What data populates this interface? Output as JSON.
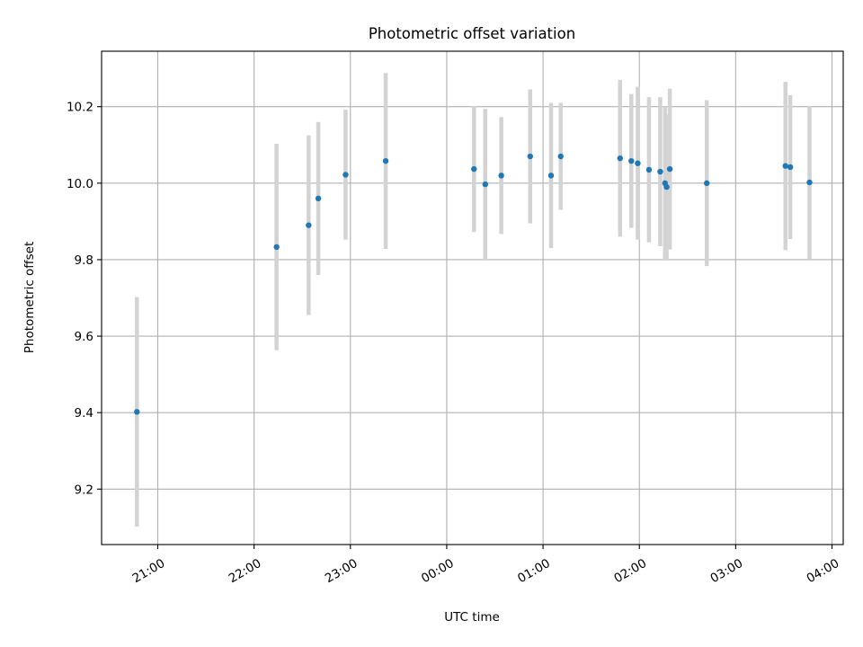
{
  "chart_data": {
    "type": "scatter",
    "title": "Photometric offset variation",
    "xlabel": "UTC time",
    "ylabel": "Photometric offset",
    "x_ticks": [
      "21:00",
      "22:00",
      "23:00",
      "00:00",
      "01:00",
      "02:00",
      "03:00",
      "04:00"
    ],
    "y_ticks": [
      "9.2",
      "9.4",
      "9.6",
      "9.8",
      "10.0",
      "10.2"
    ],
    "y_tick_values": [
      9.2,
      9.4,
      9.6,
      9.8,
      10.0,
      10.2
    ],
    "xlim": [
      "20:25",
      "04:07"
    ],
    "ylim": [
      9.055,
      10.345
    ],
    "grid": true,
    "series": [
      {
        "color": "#1f77b4",
        "errorbar_color": "#d3d3d3",
        "points": [
          {
            "x": "20:47",
            "y": 9.402,
            "yerr": 0.3
          },
          {
            "x": "22:14",
            "y": 9.833,
            "yerr": 0.27
          },
          {
            "x": "22:34",
            "y": 9.89,
            "yerr": 0.235
          },
          {
            "x": "22:40",
            "y": 9.96,
            "yerr": 0.2
          },
          {
            "x": "22:57",
            "y": 10.022,
            "yerr": 0.17
          },
          {
            "x": "23:22",
            "y": 10.058,
            "yerr": 0.23
          },
          {
            "x": "00:17",
            "y": 10.037,
            "yerr": 0.165
          },
          {
            "x": "00:24",
            "y": 9.997,
            "yerr": 0.197
          },
          {
            "x": "00:34",
            "y": 10.02,
            "yerr": 0.153
          },
          {
            "x": "00:52",
            "y": 10.07,
            "yerr": 0.175
          },
          {
            "x": "01:05",
            "y": 10.02,
            "yerr": 0.19
          },
          {
            "x": "01:11",
            "y": 10.07,
            "yerr": 0.14
          },
          {
            "x": "01:48",
            "y": 10.065,
            "yerr": 0.205
          },
          {
            "x": "01:55",
            "y": 10.058,
            "yerr": 0.175
          },
          {
            "x": "01:59",
            "y": 10.052,
            "yerr": 0.2
          },
          {
            "x": "02:06",
            "y": 10.035,
            "yerr": 0.19
          },
          {
            "x": "02:13",
            "y": 10.03,
            "yerr": 0.195
          },
          {
            "x": "02:16",
            "y": 10.0,
            "yerr": 0.2
          },
          {
            "x": "02:17",
            "y": 9.99,
            "yerr": 0.19
          },
          {
            "x": "02:19",
            "y": 10.037,
            "yerr": 0.21
          },
          {
            "x": "02:42",
            "y": 10.0,
            "yerr": 0.217
          },
          {
            "x": "03:31",
            "y": 10.045,
            "yerr": 0.22
          },
          {
            "x": "03:34",
            "y": 10.042,
            "yerr": 0.188
          },
          {
            "x": "03:46",
            "y": 10.002,
            "yerr": 0.2
          }
        ]
      }
    ]
  }
}
